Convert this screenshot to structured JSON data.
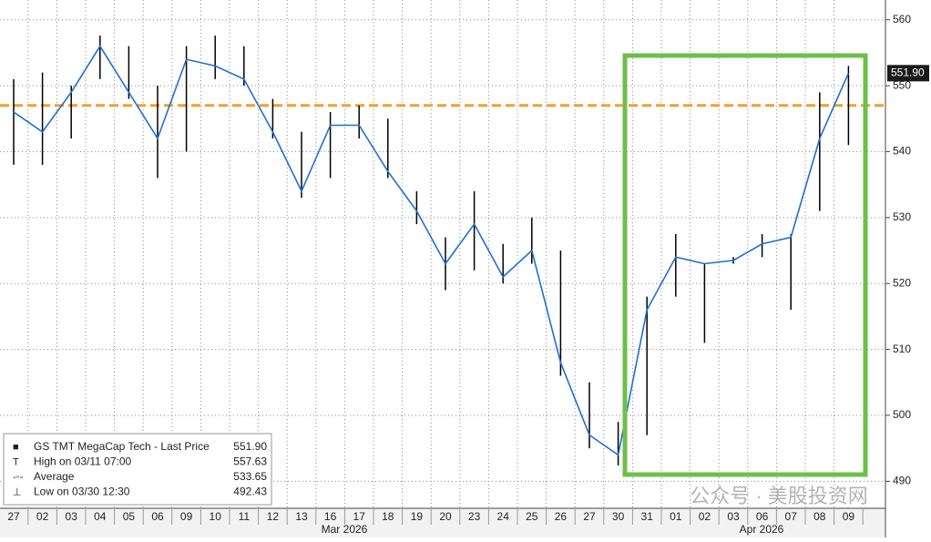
{
  "chart_data": {
    "type": "range-line",
    "categories": [
      "27",
      "02",
      "03",
      "04",
      "05",
      "06",
      "09",
      "10",
      "11",
      "12",
      "13",
      "16",
      "17",
      "18",
      "19",
      "20",
      "23",
      "24",
      "25",
      "26",
      "27",
      "30",
      "31",
      "01",
      "02",
      "03",
      "06",
      "07",
      "08",
      "09"
    ],
    "months": [
      "Mar 2026",
      "Apr 2026"
    ],
    "series": [
      {
        "name": "Close",
        "color": "#1f6fd1",
        "values": [
          546,
          543,
          549,
          556,
          549,
          542,
          554,
          553,
          551,
          543,
          534,
          544,
          544,
          537,
          531,
          523,
          529,
          521,
          525,
          508,
          497,
          494,
          516,
          524,
          523,
          523.5,
          526,
          527,
          542,
          551.9
        ]
      },
      {
        "name": "High",
        "color": "#000000",
        "values": [
          551,
          552,
          550,
          557.6,
          556,
          550,
          556,
          557.6,
          556,
          548,
          543,
          546,
          547,
          545,
          534,
          527,
          534,
          526,
          530,
          525,
          505,
          499,
          518,
          527.5,
          523,
          524,
          527.5,
          527.5,
          549,
          553
        ]
      },
      {
        "name": "Low",
        "color": "#000000",
        "values": [
          538,
          538,
          542,
          551,
          548,
          536,
          540,
          551,
          550,
          542,
          533,
          536,
          542,
          536,
          529,
          519,
          522,
          520,
          523,
          506,
          495,
          492.4,
          497,
          518,
          511,
          523,
          524,
          516,
          531,
          541
        ]
      }
    ],
    "reference_line": 547,
    "ylim": [
      485.9,
      563
    ],
    "yticks": [
      490,
      500,
      510,
      520,
      530,
      540,
      550,
      560
    ],
    "last_price": {
      "value": 551.9,
      "label": "551.90"
    },
    "legend": [
      {
        "name": "GS TMT MegaCap Tech - Last Price",
        "value": {
          "value": 551.9,
          "label": "551.90"
        }
      },
      {
        "name": "High on 03/11 07:00",
        "value": 557.63
      },
      {
        "name": "Average",
        "value": 533.65
      },
      {
        "name": "Low on 03/30 12:30",
        "value": 492.43
      }
    ],
    "watermark": "公众号 · 美股投资网",
    "grid": true
  }
}
